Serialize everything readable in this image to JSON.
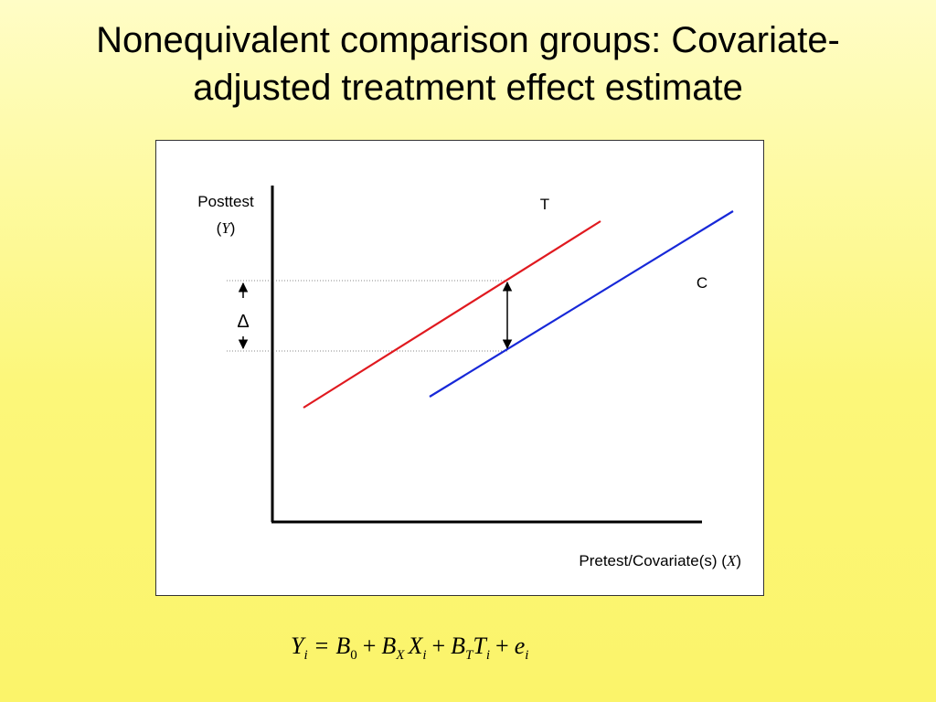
{
  "slide": {
    "title_line1": "Nonequivalent comparison groups: Covariate-",
    "title_line2": "adjusted treatment effect estimate"
  },
  "diagram": {
    "y_axis_label": "Posttest",
    "y_axis_symbol": "Y",
    "x_axis_label": "Pretest/Covariate(s)",
    "x_axis_symbol": "X",
    "line_t_label": "T",
    "line_c_label": "C",
    "delta_label": "Δ",
    "colors": {
      "treatment": "#e0191f",
      "comparison": "#1728d8",
      "axes": "#000000"
    }
  },
  "equation": {
    "Y": "Y",
    "i": "i",
    "eq": "=",
    "B": "B",
    "zero": "0",
    "plus": "+",
    "X": "X",
    "T": "T",
    "e": "e"
  }
}
